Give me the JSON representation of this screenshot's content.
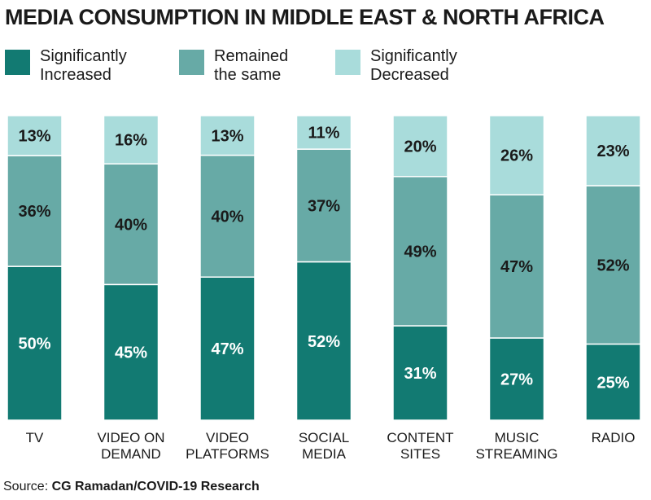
{
  "title": "MEDIA CONSUMPTION IN MIDDLE EAST & NORTH AFRICA",
  "source": {
    "prefix": "Source:",
    "text": "CG Ramadan/COVID-19 Research"
  },
  "colors": {
    "increased": "#127a72",
    "same": "#67aaa6",
    "decreased": "#a9dcdb",
    "text": "#1a1a1a"
  },
  "chart_data": {
    "type": "bar",
    "stacked": true,
    "unit": "%",
    "ylim": [
      0,
      100
    ],
    "grid": false,
    "legend_position": "top",
    "categories": [
      "TV",
      "VIDEO ON\nDEMAND",
      "VIDEO\nPLATFORMS",
      "SOCIAL\nMEDIA",
      "CONTENT\nSITES",
      "MUSIC\nSTREAMING",
      "RADIO"
    ],
    "series": [
      {
        "name": "Significantly\nIncreased",
        "color_key": "increased",
        "label_color": "#ffffff",
        "values": [
          50,
          45,
          47,
          52,
          31,
          27,
          25
        ]
      },
      {
        "name": "Remained\nthe same",
        "color_key": "same",
        "label_color": "#1a1a1a",
        "values": [
          36,
          40,
          40,
          37,
          49,
          47,
          52
        ]
      },
      {
        "name": "Significantly\nDecreased",
        "color_key": "decreased",
        "label_color": "#1a1a1a",
        "values": [
          13,
          16,
          13,
          11,
          20,
          26,
          23
        ]
      }
    ]
  }
}
